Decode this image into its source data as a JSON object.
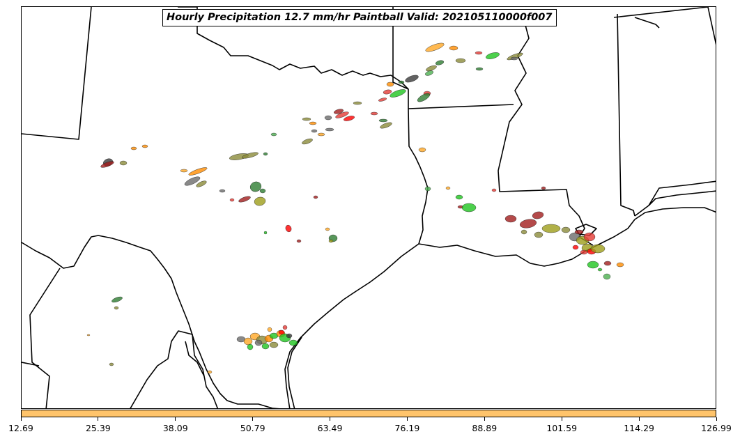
{
  "title": "Hourly Precipitation 12.7 mm/hr Paintball Valid: 202105110000f007",
  "colorbar": {
    "color": "#ffc46b",
    "ticks": [
      "12.69",
      "25.39",
      "38.09",
      "50.79",
      "63.49",
      "76.19",
      "88.89",
      "101.59",
      "114.29",
      "126.99"
    ]
  },
  "member_colors": [
    "#e53935",
    "#2e7d32",
    "#ff8c00",
    "#8b8b3a",
    "#ffa726",
    "#6b6b6b",
    "#1fc41f",
    "#a11d1d",
    "#ff0000",
    "#4caf50",
    "#9e9e1a",
    "#3b3b3b"
  ]
}
